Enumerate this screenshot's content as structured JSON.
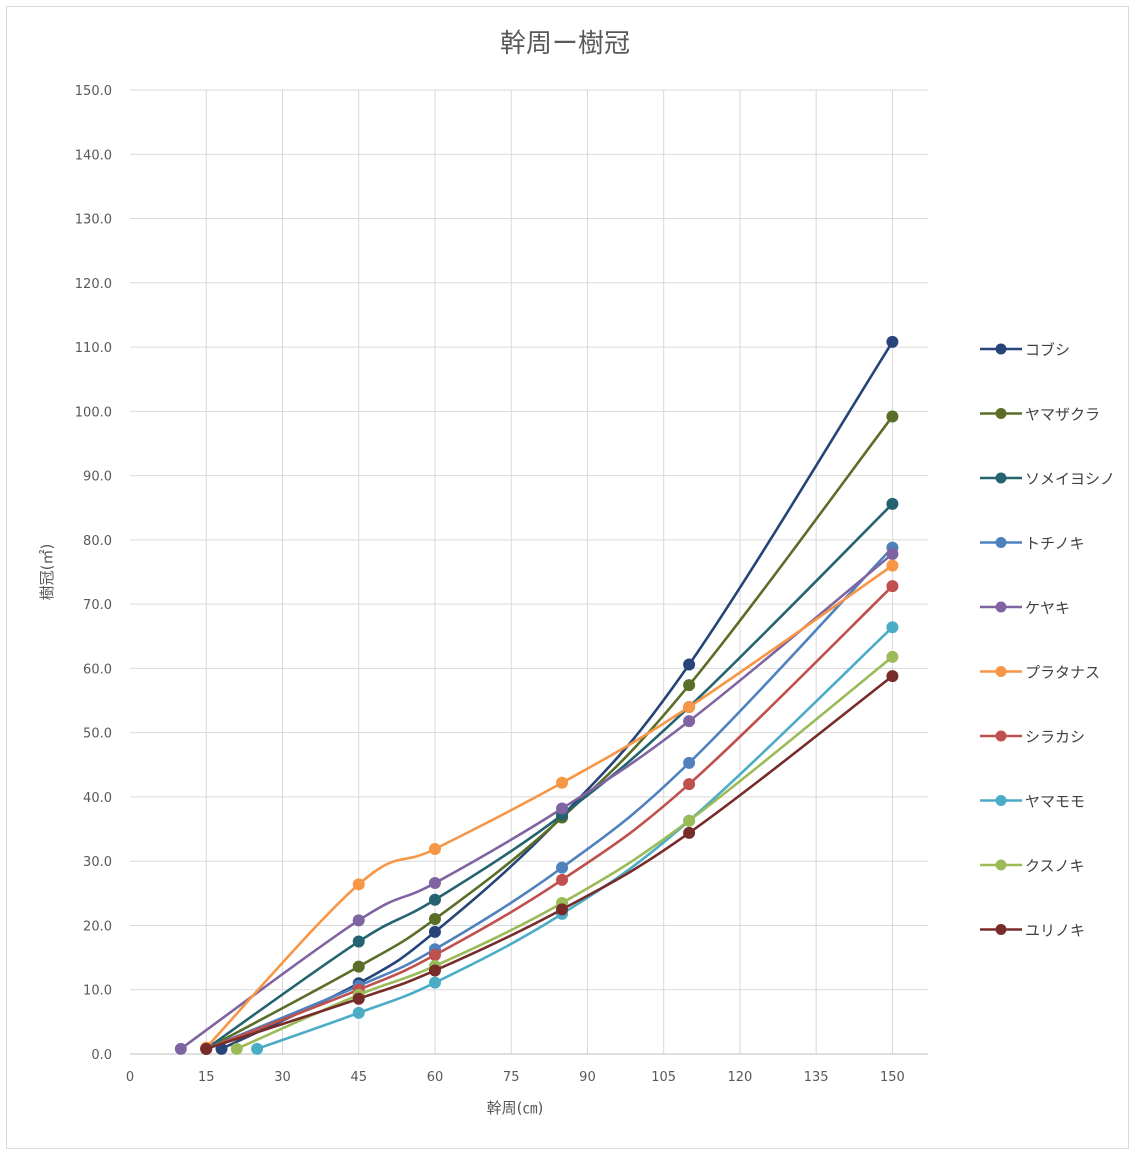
{
  "chart_data": {
    "type": "line",
    "title": "幹周ー樹冠",
    "xlabel": "幹周(㎝)",
    "ylabel": "樹冠(㎡)",
    "xlim": [
      0,
      157
    ],
    "ylim": [
      0,
      150
    ],
    "xticks": [
      0,
      15,
      30,
      45,
      60,
      75,
      90,
      105,
      120,
      135,
      150
    ],
    "xtick_labels": [
      "0",
      "15",
      "30",
      "45",
      "60",
      "75",
      "90",
      "105",
      "120",
      "135",
      "150"
    ],
    "yticks": [
      0,
      10,
      20,
      30,
      40,
      50,
      60,
      70,
      80,
      90,
      100,
      110,
      120,
      130,
      140,
      150
    ],
    "ytick_labels": [
      "0.0",
      "10.0",
      "20.0",
      "30.0",
      "40.0",
      "50.0",
      "60.0",
      "70.0",
      "80.0",
      "90.0",
      "100.0",
      "110.0",
      "120.0",
      "130.0",
      "140.0",
      "150.0"
    ],
    "grid": true,
    "legend_position": "right",
    "series": [
      {
        "name": "コブシ",
        "color": "#264478",
        "points": [
          [
            18,
            0.8
          ],
          [
            45,
            11.0
          ],
          [
            60,
            19.0
          ],
          [
            85,
            37.0
          ],
          [
            110,
            60.6
          ],
          [
            150,
            110.8
          ]
        ]
      },
      {
        "name": "ヤマザクラ",
        "color": "#5a6e28",
        "points": [
          [
            15,
            0.8
          ],
          [
            45,
            13.6
          ],
          [
            60,
            21.0
          ],
          [
            85,
            36.8
          ],
          [
            110,
            57.4
          ],
          [
            150,
            99.2
          ]
        ]
      },
      {
        "name": "ソメイヨシノ",
        "color": "#24636f",
        "points": [
          [
            15,
            0.8
          ],
          [
            45,
            17.5
          ],
          [
            60,
            24.0
          ],
          [
            85,
            37.2
          ],
          [
            110,
            54.0
          ],
          [
            150,
            85.6
          ]
        ]
      },
      {
        "name": "トチノキ",
        "color": "#4f81bd",
        "points": [
          [
            15,
            0.8
          ],
          [
            45,
            10.6
          ],
          [
            60,
            16.3
          ],
          [
            85,
            29.0
          ],
          [
            110,
            45.3
          ],
          [
            150,
            78.8
          ]
        ]
      },
      {
        "name": "ケヤキ",
        "color": "#8064a2",
        "points": [
          [
            10,
            0.8
          ],
          [
            45,
            20.8
          ],
          [
            60,
            26.6
          ],
          [
            85,
            38.2
          ],
          [
            110,
            51.8
          ],
          [
            150,
            77.8
          ]
        ]
      },
      {
        "name": "プラタナス",
        "color": "#f79646",
        "points": [
          [
            15,
            1.0
          ],
          [
            45,
            26.4
          ],
          [
            60,
            31.9
          ],
          [
            85,
            42.2
          ],
          [
            110,
            54.0
          ],
          [
            150,
            76.0
          ]
        ]
      },
      {
        "name": "シラカシ",
        "color": "#c0504d",
        "points": [
          [
            15,
            0.8
          ],
          [
            45,
            10.0
          ],
          [
            60,
            15.4
          ],
          [
            85,
            27.1
          ],
          [
            110,
            42.0
          ],
          [
            150,
            72.8
          ]
        ]
      },
      {
        "name": "ヤマモモ",
        "color": "#4bacc6",
        "points": [
          [
            25,
            0.8
          ],
          [
            45,
            6.4
          ],
          [
            60,
            11.1
          ],
          [
            85,
            21.8
          ],
          [
            110,
            36.3
          ],
          [
            150,
            66.4
          ]
        ]
      },
      {
        "name": "クスノキ",
        "color": "#9bbb59",
        "points": [
          [
            21,
            0.8
          ],
          [
            45,
            9.2
          ],
          [
            60,
            13.7
          ],
          [
            85,
            23.5
          ],
          [
            110,
            36.3
          ],
          [
            150,
            61.8
          ]
        ]
      },
      {
        "name": "ユリノキ",
        "color": "#772c2a",
        "points": [
          [
            15,
            0.8
          ],
          [
            45,
            8.6
          ],
          [
            60,
            13.0
          ],
          [
            85,
            22.5
          ],
          [
            110,
            34.4
          ],
          [
            150,
            58.8
          ]
        ]
      }
    ]
  }
}
